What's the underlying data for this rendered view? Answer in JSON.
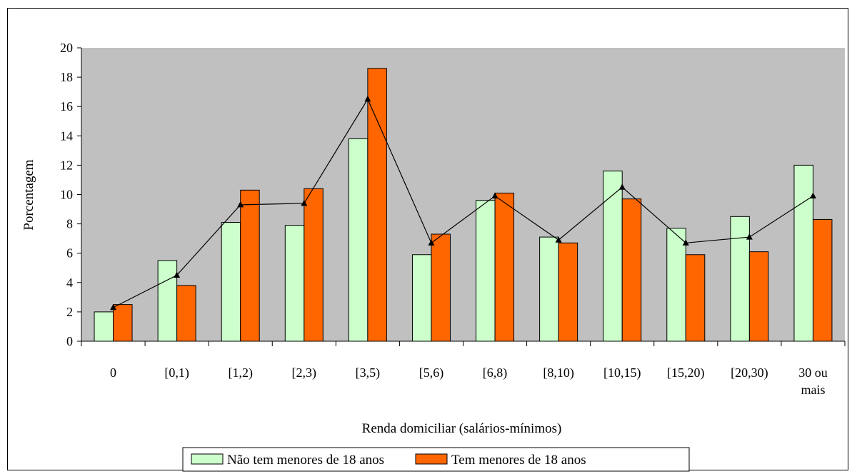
{
  "chart_data": {
    "type": "bar",
    "categories": [
      "0",
      "[0,1)",
      "[1,2)",
      "[2,3)",
      "[3,5)",
      "[5,6)",
      "[6,8)",
      "[8,10)",
      "[10,15)",
      "[15,20)",
      "[20,30)",
      "30 ou mais"
    ],
    "series": [
      {
        "name": "Não tem menores de 18 anos",
        "color": "#ccffcc",
        "values": [
          2.0,
          5.5,
          8.1,
          7.9,
          13.8,
          5.9,
          9.6,
          7.1,
          11.6,
          7.7,
          8.5,
          12.0
        ]
      },
      {
        "name": "Tem menores de 18 anos",
        "color": "#ff6600",
        "values": [
          2.5,
          3.8,
          10.3,
          10.4,
          18.6,
          7.3,
          10.1,
          6.7,
          9.7,
          5.9,
          6.1,
          8.3
        ]
      },
      {
        "type": "line",
        "color": "#000000",
        "values": [
          2.3,
          4.5,
          9.3,
          9.4,
          16.5,
          6.7,
          9.9,
          6.9,
          10.5,
          6.7,
          7.1,
          9.9
        ]
      }
    ],
    "xlabel": "Renda domiciliar (salários-mínimos)",
    "ylabel": "Porcentagem",
    "ylim": [
      0,
      20
    ],
    "yticks": [
      "0",
      "2",
      "4",
      "6",
      "8",
      "10",
      "12",
      "14",
      "16",
      "18",
      "20"
    ],
    "grid": false,
    "plot_background": "#c0c0c0",
    "legend_position": "bottom"
  }
}
